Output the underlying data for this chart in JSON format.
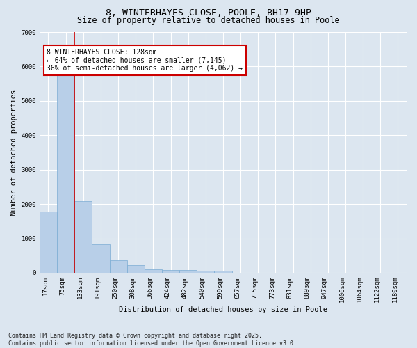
{
  "title": "8, WINTERHAYES CLOSE, POOLE, BH17 9HP",
  "subtitle": "Size of property relative to detached houses in Poole",
  "xlabel": "Distribution of detached houses by size in Poole",
  "ylabel": "Number of detached properties",
  "categories": [
    "17sqm",
    "75sqm",
    "133sqm",
    "191sqm",
    "250sqm",
    "308sqm",
    "366sqm",
    "424sqm",
    "482sqm",
    "540sqm",
    "599sqm",
    "657sqm",
    "715sqm",
    "773sqm",
    "831sqm",
    "889sqm",
    "947sqm",
    "1006sqm",
    "1064sqm",
    "1122sqm",
    "1180sqm"
  ],
  "values": [
    1780,
    5820,
    2080,
    820,
    370,
    215,
    110,
    90,
    75,
    55,
    50,
    0,
    0,
    0,
    0,
    0,
    0,
    0,
    0,
    0,
    0
  ],
  "bar_color": "#b8cfe8",
  "bar_edge_color": "#7aacd4",
  "vline_color": "#cc0000",
  "annotation_text": "8 WINTERHAYES CLOSE: 128sqm\n← 64% of detached houses are smaller (7,145)\n36% of semi-detached houses are larger (4,062) →",
  "annotation_box_color": "#cc0000",
  "annotation_box_fill": "#ffffff",
  "ylim": [
    0,
    7000
  ],
  "yticks": [
    0,
    1000,
    2000,
    3000,
    4000,
    5000,
    6000,
    7000
  ],
  "background_color": "#dce6f0",
  "grid_color": "#ffffff",
  "footer": "Contains HM Land Registry data © Crown copyright and database right 2025.\nContains public sector information licensed under the Open Government Licence v3.0.",
  "title_fontsize": 9.5,
  "subtitle_fontsize": 8.5,
  "label_fontsize": 7.5,
  "tick_fontsize": 6.5,
  "annot_fontsize": 7.0,
  "footer_fontsize": 6.0
}
